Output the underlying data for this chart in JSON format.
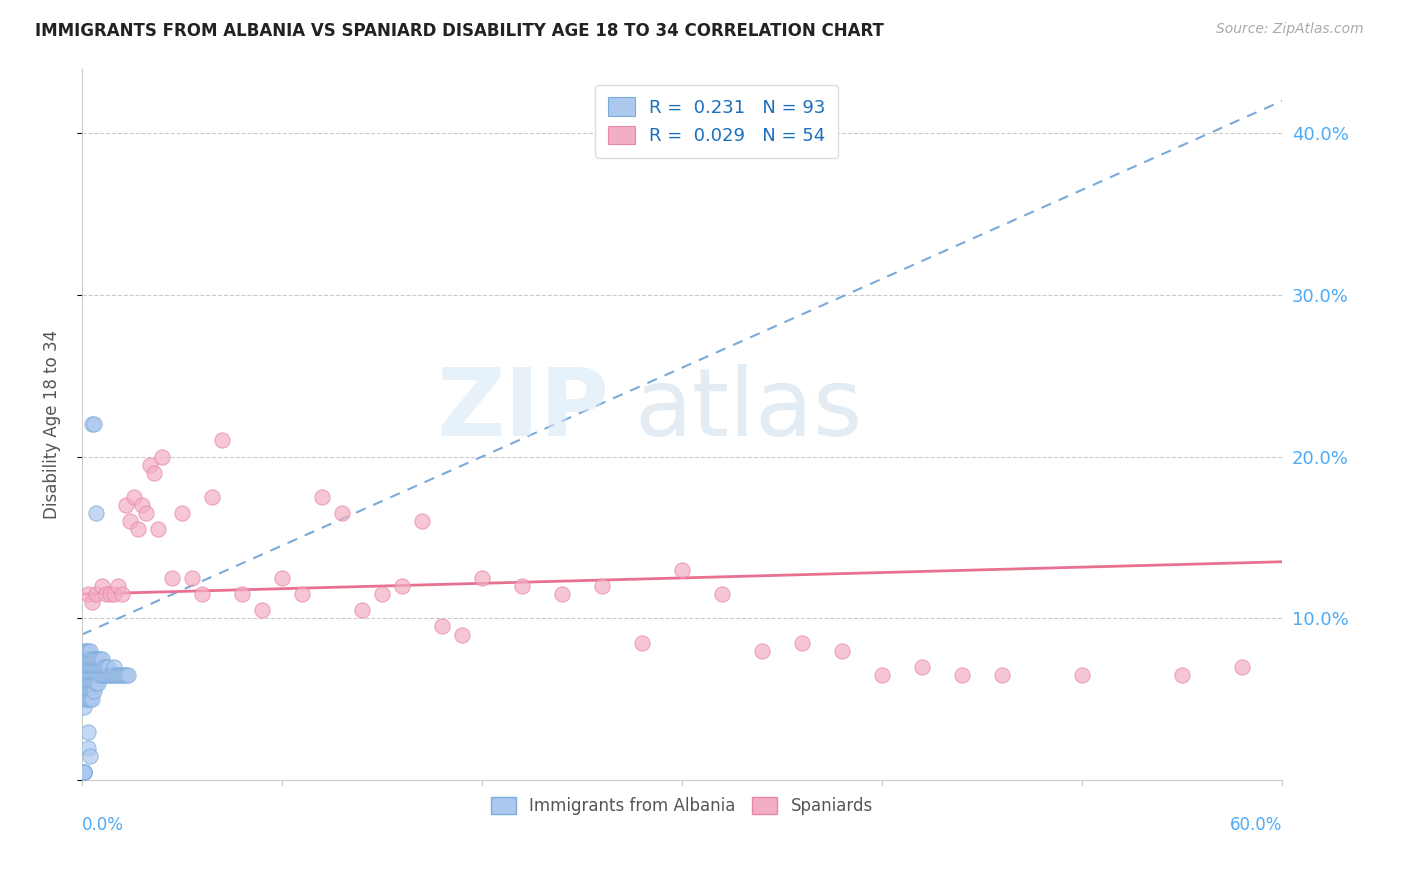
{
  "title": "IMMIGRANTS FROM ALBANIA VS SPANIARD DISABILITY AGE 18 TO 34 CORRELATION CHART",
  "source": "Source: ZipAtlas.com",
  "ylabel": "Disability Age 18 to 34",
  "right_ytick_labels": [
    "",
    "10.0%",
    "20.0%",
    "30.0%",
    "40.0%"
  ],
  "right_ytick_vals": [
    0.0,
    0.1,
    0.2,
    0.3,
    0.4
  ],
  "xlim": [
    0.0,
    0.6
  ],
  "ylim": [
    0.0,
    0.44
  ],
  "albania_color": "#adc8ee",
  "albania_edge": "#7aaad8",
  "spaniard_color": "#f4aec4",
  "spaniard_edge": "#e888a8",
  "trendline_albania_color": "#7aaad8",
  "trendline_spaniard_color": "#e87090",
  "watermark_zip_color": "#d8e8f8",
  "watermark_atlas_color": "#c8d8e8",
  "legend_r1_text": "R =  0.231   N = 93",
  "legend_r2_text": "R =  0.029   N = 54",
  "legend_text_color": "#1a6fbf",
  "albania_x": [
    0.001,
    0.001,
    0.001,
    0.001,
    0.001,
    0.001,
    0.001,
    0.001,
    0.001,
    0.001,
    0.001,
    0.001,
    0.002,
    0.002,
    0.002,
    0.002,
    0.002,
    0.002,
    0.002,
    0.002,
    0.002,
    0.002,
    0.002,
    0.002,
    0.003,
    0.003,
    0.003,
    0.003,
    0.003,
    0.003,
    0.003,
    0.003,
    0.003,
    0.003,
    0.004,
    0.004,
    0.004,
    0.004,
    0.004,
    0.004,
    0.004,
    0.005,
    0.005,
    0.005,
    0.005,
    0.005,
    0.005,
    0.006,
    0.006,
    0.006,
    0.006,
    0.006,
    0.007,
    0.007,
    0.007,
    0.007,
    0.008,
    0.008,
    0.008,
    0.008,
    0.009,
    0.009,
    0.009,
    0.01,
    0.01,
    0.01,
    0.011,
    0.011,
    0.012,
    0.012,
    0.013,
    0.013,
    0.014,
    0.015,
    0.016,
    0.016,
    0.017,
    0.018,
    0.019,
    0.02,
    0.021,
    0.022,
    0.023,
    0.005,
    0.006,
    0.007,
    0.003,
    0.003,
    0.004,
    0.001,
    0.001,
    0.001,
    0.001
  ],
  "albania_y": [
    0.065,
    0.07,
    0.055,
    0.06,
    0.08,
    0.075,
    0.07,
    0.065,
    0.055,
    0.06,
    0.05,
    0.045,
    0.08,
    0.075,
    0.07,
    0.065,
    0.06,
    0.055,
    0.05,
    0.065,
    0.07,
    0.075,
    0.055,
    0.06,
    0.065,
    0.07,
    0.075,
    0.06,
    0.055,
    0.05,
    0.08,
    0.065,
    0.07,
    0.075,
    0.065,
    0.07,
    0.075,
    0.06,
    0.055,
    0.05,
    0.08,
    0.065,
    0.07,
    0.075,
    0.06,
    0.055,
    0.05,
    0.065,
    0.07,
    0.075,
    0.06,
    0.055,
    0.065,
    0.07,
    0.075,
    0.06,
    0.065,
    0.07,
    0.075,
    0.06,
    0.065,
    0.07,
    0.075,
    0.065,
    0.07,
    0.075,
    0.065,
    0.07,
    0.065,
    0.07,
    0.065,
    0.07,
    0.065,
    0.065,
    0.065,
    0.07,
    0.065,
    0.065,
    0.065,
    0.065,
    0.065,
    0.065,
    0.065,
    0.22,
    0.22,
    0.165,
    0.03,
    0.02,
    0.015,
    0.005,
    0.005,
    0.005,
    0.005
  ],
  "spaniard_x": [
    0.003,
    0.005,
    0.007,
    0.01,
    0.012,
    0.014,
    0.016,
    0.018,
    0.02,
    0.022,
    0.024,
    0.026,
    0.028,
    0.03,
    0.032,
    0.034,
    0.036,
    0.038,
    0.04,
    0.045,
    0.05,
    0.055,
    0.06,
    0.065,
    0.07,
    0.08,
    0.09,
    0.1,
    0.11,
    0.12,
    0.13,
    0.14,
    0.15,
    0.16,
    0.17,
    0.18,
    0.19,
    0.2,
    0.22,
    0.24,
    0.26,
    0.28,
    0.3,
    0.32,
    0.34,
    0.36,
    0.38,
    0.4,
    0.44,
    0.5,
    0.55,
    0.58,
    0.42,
    0.46
  ],
  "spaniard_y": [
    0.115,
    0.11,
    0.115,
    0.12,
    0.115,
    0.115,
    0.115,
    0.12,
    0.115,
    0.17,
    0.16,
    0.175,
    0.155,
    0.17,
    0.165,
    0.195,
    0.19,
    0.155,
    0.2,
    0.125,
    0.165,
    0.125,
    0.115,
    0.175,
    0.21,
    0.115,
    0.105,
    0.125,
    0.115,
    0.175,
    0.165,
    0.105,
    0.115,
    0.12,
    0.16,
    0.095,
    0.09,
    0.125,
    0.12,
    0.115,
    0.12,
    0.085,
    0.13,
    0.115,
    0.08,
    0.085,
    0.08,
    0.065,
    0.065,
    0.065,
    0.065,
    0.07,
    0.07,
    0.065
  ]
}
